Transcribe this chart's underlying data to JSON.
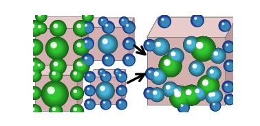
{
  "fig_width": 3.78,
  "fig_height": 1.84,
  "dpi": 100,
  "box_bg_front": "#d4b0b0",
  "box_bg_top": "#e8cccc",
  "box_bg_right": "#b89898",
  "box_edge": "#777777",
  "green": "#2db82d",
  "green_dark": "#1a7a1a",
  "cyan": "#44aacc",
  "cyan_dark": "#2266aa",
  "blue_dark": "#1a3888",
  "blue_mid": "#2255bb",
  "white": "#ffffff"
}
